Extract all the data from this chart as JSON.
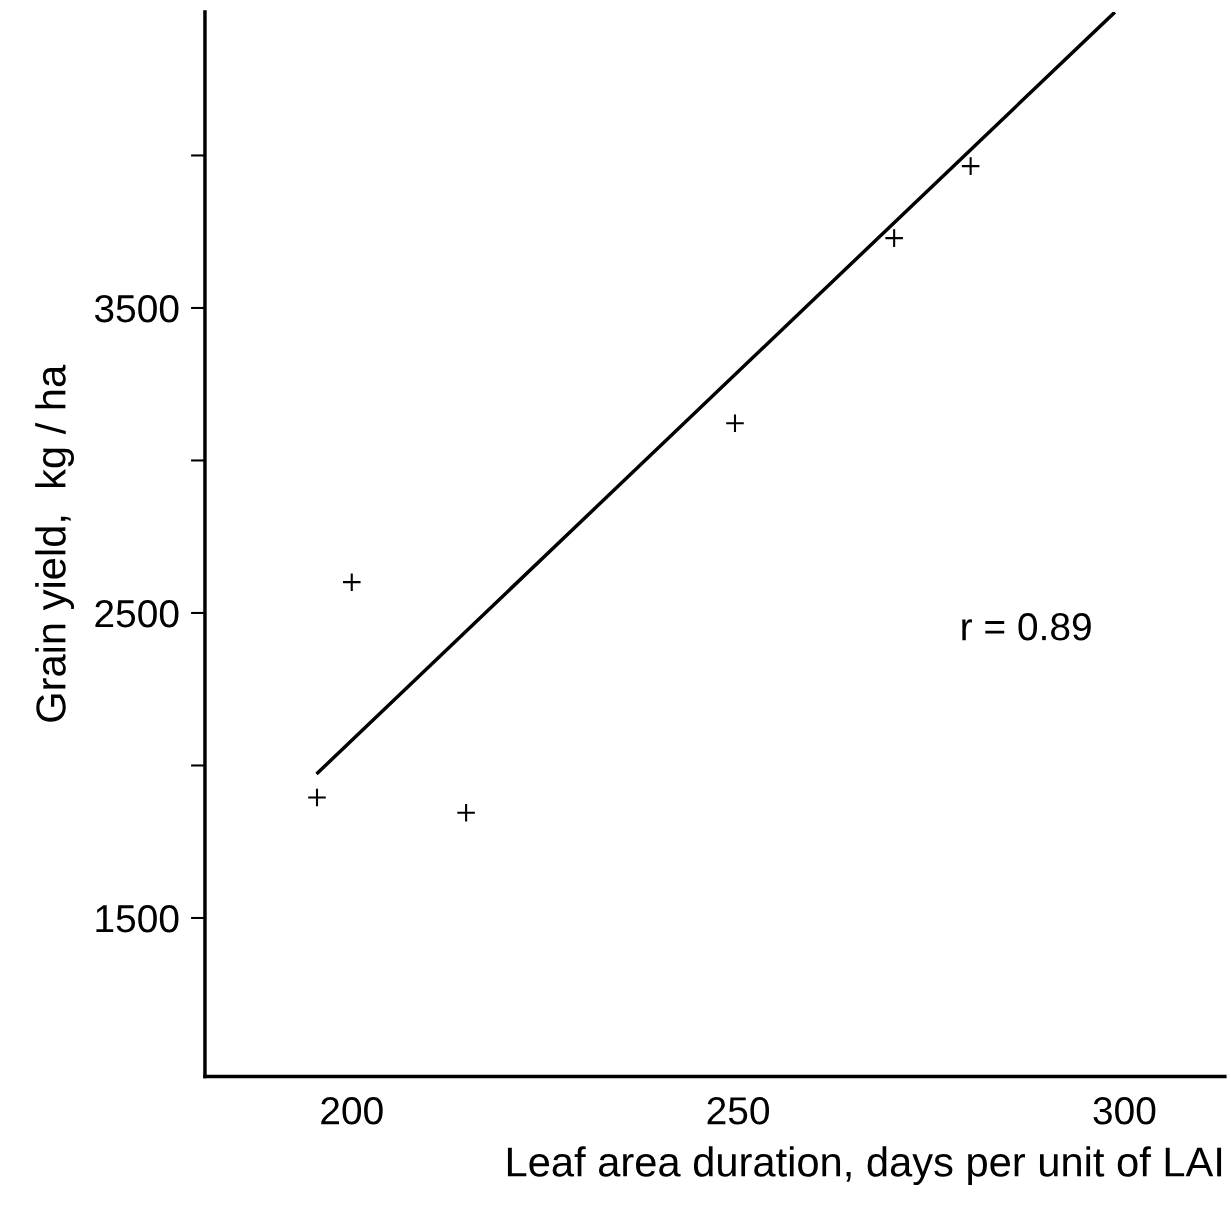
{
  "chart_data": {
    "type": "scatter",
    "xlabel": "Leaf area duration, days per unit of LAI",
    "ylabel": "Grain yield,  kg / ha",
    "x": [
      195.5,
      200,
      214.8,
      249.6,
      270.2,
      280.1
    ],
    "series": [
      {
        "color": "#000000",
        "marker": "cross",
        "values": [
          1895,
          2601,
          1845,
          3122,
          3729,
          3965
        ]
      },
      {
        "type": "line",
        "color": "#000000",
        "marker": "none",
        "x": [
          195.6,
          298.6
        ],
        "values": [
          1976,
          4466
        ]
      }
    ],
    "xlim": [
      181,
      313
    ],
    "ylim": [
      980,
      4470
    ],
    "xticks": [
      200,
      250,
      300
    ],
    "yticks": [
      1500,
      {
        "value": 2000,
        "label": null
      },
      2500,
      {
        "value": 3000,
        "label": null
      },
      3500,
      {
        "value": 4000,
        "label": null
      }
    ],
    "annotations": [
      "r = 0.89"
    ],
    "grid": false,
    "legend": false
  }
}
